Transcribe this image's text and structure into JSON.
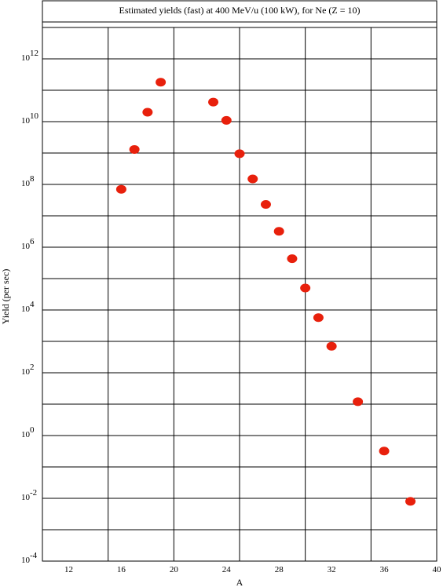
{
  "chart_data": {
    "type": "scatter",
    "title": "Estimated yields (fast) at 400 MeV/u (100 kW), for Ne (Z = 10)",
    "xlabel": "A",
    "ylabel": "Yield (per sec)",
    "xlim": [
      10,
      40
    ],
    "ylim_log10": [
      -4,
      13
    ],
    "y_scale": "log",
    "grid": true,
    "x_ticks": [
      {
        "value": 12,
        "label": "12"
      },
      {
        "value": 16,
        "label": "16"
      },
      {
        "value": 20,
        "label": "20"
      },
      {
        "value": 24,
        "label": "24"
      },
      {
        "value": 28,
        "label": "28"
      },
      {
        "value": 32,
        "label": "32"
      },
      {
        "value": 36,
        "label": "36"
      },
      {
        "value": 40,
        "label": "40"
      }
    ],
    "y_ticks": [
      {
        "exp": -4,
        "base": "10",
        "sup": "-4"
      },
      {
        "exp": -2,
        "base": "10",
        "sup": "-2"
      },
      {
        "exp": 0,
        "base": "10",
        "sup": "0"
      },
      {
        "exp": 2,
        "base": "10",
        "sup": "2"
      },
      {
        "exp": 4,
        "base": "10",
        "sup": "4"
      },
      {
        "exp": 6,
        "base": "10",
        "sup": "6"
      },
      {
        "exp": 8,
        "base": "10",
        "sup": "8"
      },
      {
        "exp": 10,
        "base": "10",
        "sup": "10"
      },
      {
        "exp": 12,
        "base": "10",
        "sup": "12"
      }
    ],
    "x_major_lines": [
      15,
      20,
      25,
      30,
      35
    ],
    "marker_color": "#e8200c",
    "points": [
      {
        "A": 16,
        "yield": 70000000.0
      },
      {
        "A": 17,
        "yield": 1300000000.0
      },
      {
        "A": 18,
        "yield": 20000000000.0
      },
      {
        "A": 19,
        "yield": 180000000000.0
      },
      {
        "A": 23,
        "yield": 42000000000.0
      },
      {
        "A": 24,
        "yield": 11000000000.0
      },
      {
        "A": 25,
        "yield": 950000000.0
      },
      {
        "A": 26,
        "yield": 150000000.0
      },
      {
        "A": 27,
        "yield": 23000000.0
      },
      {
        "A": 28,
        "yield": 3200000.0
      },
      {
        "A": 29,
        "yield": 430000.0
      },
      {
        "A": 30,
        "yield": 50000.0
      },
      {
        "A": 31,
        "yield": 5700.0
      },
      {
        "A": 32,
        "yield": 700.0
      },
      {
        "A": 34,
        "yield": 12
      },
      {
        "A": 36,
        "yield": 0.32
      },
      {
        "A": 38,
        "yield": 0.008
      }
    ]
  }
}
